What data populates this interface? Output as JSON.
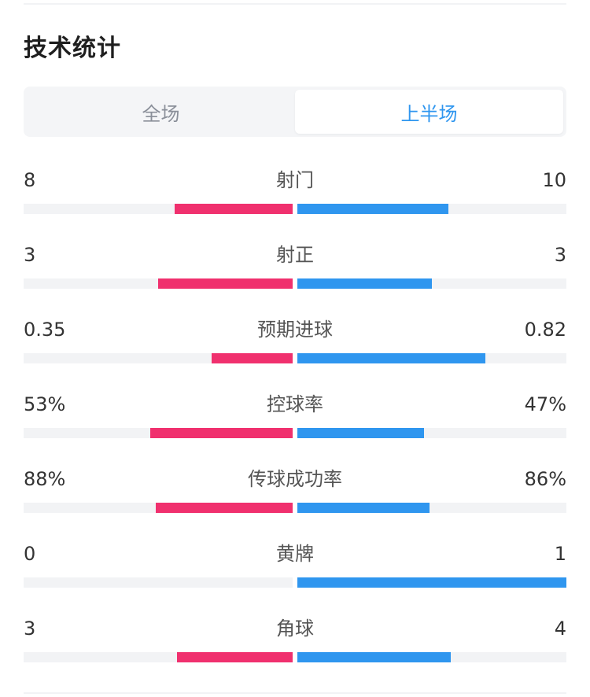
{
  "title": "技术统计",
  "tabs": [
    {
      "label": "全场",
      "active": false
    },
    {
      "label": "上半场",
      "active": true
    }
  ],
  "colors": {
    "home_bar": "#f0306e",
    "away_bar": "#2f96ef",
    "active_tab": "#2f96ef"
  },
  "stats": [
    {
      "label": "射门",
      "home": "8",
      "away": "10",
      "home_fraction": 0.44,
      "away_fraction": 0.56
    },
    {
      "label": "射正",
      "home": "3",
      "away": "3",
      "home_fraction": 0.5,
      "away_fraction": 0.5
    },
    {
      "label": "预期进球",
      "home": "0.35",
      "away": "0.82",
      "home_fraction": 0.3,
      "away_fraction": 0.7
    },
    {
      "label": "控球率",
      "home": "53%",
      "away": "47%",
      "home_fraction": 0.53,
      "away_fraction": 0.47
    },
    {
      "label": "传球成功率",
      "home": "88%",
      "away": "86%",
      "home_fraction": 0.51,
      "away_fraction": 0.49
    },
    {
      "label": "黄牌",
      "home": "0",
      "away": "1",
      "home_fraction": 0.0,
      "away_fraction": 1.0
    },
    {
      "label": "角球",
      "home": "3",
      "away": "4",
      "home_fraction": 0.43,
      "away_fraction": 0.57
    }
  ]
}
